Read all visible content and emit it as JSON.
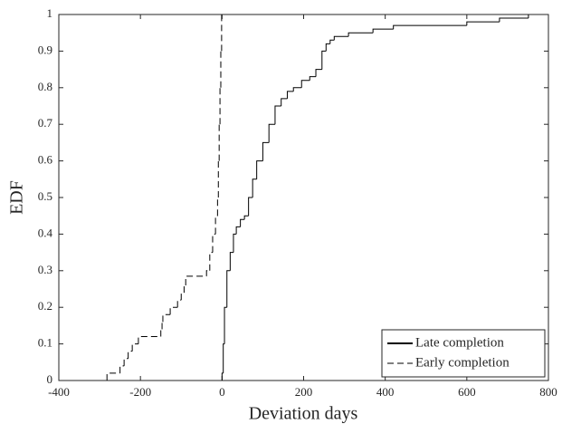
{
  "chart_data": {
    "type": "step",
    "xlabel": "Deviation days",
    "ylabel": "EDF",
    "xlim": [
      -400,
      800
    ],
    "xticks": [
      -400,
      -200,
      0,
      200,
      400,
      600,
      800
    ],
    "ylim": [
      0,
      1
    ],
    "yticks": [
      0,
      0.1,
      0.2,
      0.3,
      0.4,
      0.5,
      0.6,
      0.7,
      0.8,
      0.9,
      1
    ],
    "legend": "lower right",
    "series": [
      {
        "name": "Late completion",
        "color": "#000000",
        "dash": "solid",
        "x": [
          0,
          3,
          6,
          12,
          20,
          28,
          35,
          45,
          55,
          65,
          75,
          85,
          100,
          115,
          130,
          145,
          160,
          175,
          195,
          215,
          230,
          245,
          255,
          265,
          275,
          310,
          370,
          420,
          600,
          680,
          751
        ],
        "values": [
          0.02,
          0.1,
          0.2,
          0.3,
          0.35,
          0.4,
          0.42,
          0.44,
          0.45,
          0.5,
          0.55,
          0.6,
          0.65,
          0.7,
          0.75,
          0.77,
          0.79,
          0.8,
          0.82,
          0.83,
          0.85,
          0.9,
          0.92,
          0.93,
          0.94,
          0.95,
          0.96,
          0.97,
          0.98,
          0.99,
          1
        ]
      },
      {
        "name": "Early completion",
        "color": "#000000",
        "dash": "dashed",
        "x": [
          -282,
          -250,
          -240,
          -230,
          -220,
          -205,
          -150,
          -147,
          -145,
          -127,
          -109,
          -100,
          -93,
          -89,
          -38,
          -30,
          -23,
          -16,
          -11,
          -9,
          -7,
          -5,
          -3,
          -1
        ],
        "values": [
          0.02,
          0.04,
          0.06,
          0.08,
          0.1,
          0.12,
          0.14,
          0.16,
          0.18,
          0.2,
          0.22,
          0.24,
          0.26,
          0.285,
          0.3,
          0.35,
          0.4,
          0.45,
          0.5,
          0.6,
          0.7,
          0.8,
          0.9,
          1
        ]
      }
    ]
  }
}
